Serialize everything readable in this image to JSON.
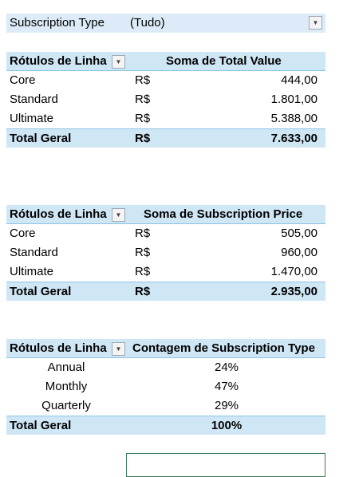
{
  "filter": {
    "label": "Subscription Type",
    "value": "(Tudo)"
  },
  "pivot1": {
    "row_header": "Rótulos de Linha",
    "value_header": "Soma de Total Value",
    "rows": [
      {
        "label": "Core",
        "currency": "R$",
        "value": "444,00"
      },
      {
        "label": "Standard",
        "currency": "R$",
        "value": "1.801,00"
      },
      {
        "label": "Ultimate",
        "currency": "R$",
        "value": "5.388,00"
      }
    ],
    "total": {
      "label": "Total Geral",
      "currency": "R$",
      "value": "7.633,00"
    }
  },
  "pivot2": {
    "row_header": "Rótulos de Linha",
    "value_header": "Soma de Subscription Price",
    "rows": [
      {
        "label": "Core",
        "currency": "R$",
        "value": "505,00"
      },
      {
        "label": "Standard",
        "currency": "R$",
        "value": "960,00"
      },
      {
        "label": "Ultimate",
        "currency": "R$",
        "value": "1.470,00"
      }
    ],
    "total": {
      "label": "Total Geral",
      "currency": "R$",
      "value": "2.935,00"
    }
  },
  "pivot3": {
    "row_header": "Rótulos de Linha",
    "value_header": "Contagem de Subscription Type",
    "rows": [
      {
        "label": "Annual",
        "value": "24%"
      },
      {
        "label": "Monthly",
        "value": "47%"
      },
      {
        "label": "Quarterly",
        "value": "29%"
      }
    ],
    "total": {
      "label": "Total Geral",
      "value": "100%"
    }
  },
  "icons": {
    "dropdown": "dropdown-arrow-icon"
  }
}
